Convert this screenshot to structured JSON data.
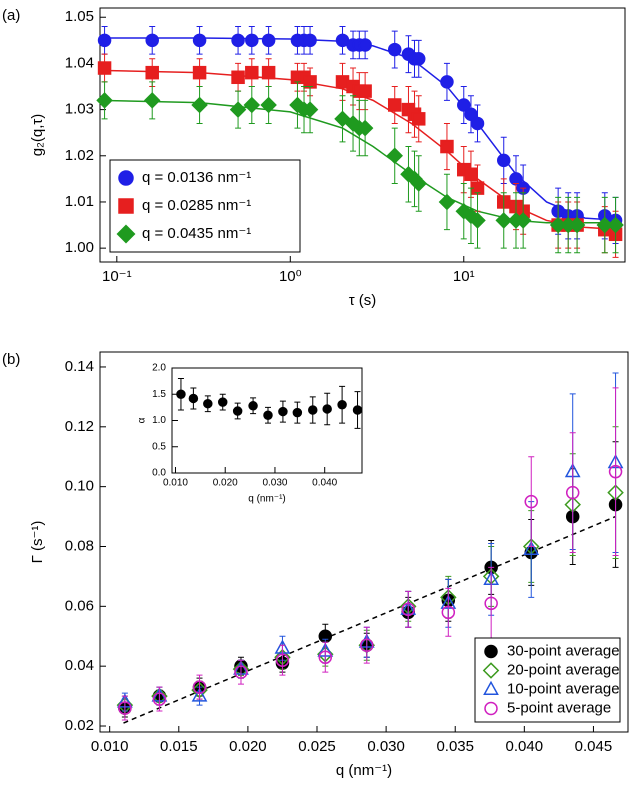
{
  "chart_data": [
    {
      "type": "scatter",
      "panel_label": "(a)",
      "xlabel": "τ (s)",
      "ylabel": "g₂(q,τ)",
      "log_x": true,
      "legend": "lower left",
      "xlim": [
        0.08,
        85
      ],
      "xticks": [
        {
          "value": 0.1,
          "label": "10⁻¹"
        },
        {
          "value": 1,
          "label": "10⁰"
        },
        {
          "value": 10,
          "label": "10¹"
        }
      ],
      "ylim": [
        0.997,
        1.052
      ],
      "yticks": [
        {
          "value": 1,
          "label": "1.00"
        },
        1.01,
        1.02,
        1.03,
        1.04,
        1.05
      ],
      "x": [
        0.085,
        0.16,
        0.3,
        0.5,
        0.6,
        0.75,
        1.1,
        1.2,
        1.3,
        2,
        2.3,
        2.5,
        2.7,
        4,
        4.8,
        5.2,
        5.5,
        8,
        10,
        11,
        12,
        17,
        20,
        22,
        35,
        40,
        45,
        65,
        75
      ],
      "fit_x": [
        0.08,
        0.3,
        1,
        2,
        3,
        5,
        8,
        12,
        20,
        30,
        50,
        80
      ],
      "series": [
        {
          "name": "q = 0.0136 nm⁻¹",
          "color": "#1f1fe6",
          "marker": "circle",
          "filled": true,
          "values": [
            1.045,
            1.045,
            1.045,
            1.045,
            1.045,
            1.045,
            1.045,
            1.045,
            1.045,
            1.045,
            1.044,
            1.044,
            1.044,
            1.043,
            1.042,
            1.041,
            1.041,
            1.036,
            1.031,
            1.029,
            1.027,
            1.019,
            1.015,
            1.013,
            1.008,
            1.007,
            1.007,
            1.007,
            1.006
          ],
          "errors": [
            0.003,
            0.003,
            0.003,
            0.003,
            0.003,
            0.003,
            0.003,
            0.003,
            0.003,
            0.003,
            0.003,
            0.003,
            0.003,
            0.004,
            0.004,
            0.004,
            0.004,
            0.004,
            0.004,
            0.004,
            0.004,
            0.005,
            0.005,
            0.005,
            0.005,
            0.005,
            0.005,
            0.005,
            0.005
          ],
          "fit": [
            1.0455,
            1.0455,
            1.0453,
            1.0448,
            1.0438,
            1.041,
            1.035,
            1.027,
            1.016,
            1.01,
            1.0065,
            1.006
          ]
        },
        {
          "name": "q = 0.0285 nm⁻¹",
          "color": "#e61f1f",
          "marker": "square",
          "filled": true,
          "values": [
            1.039,
            1.038,
            1.038,
            1.037,
            1.038,
            1.038,
            1.037,
            1.037,
            1.036,
            1.036,
            1.035,
            1.034,
            1.034,
            1.031,
            1.03,
            1.029,
            1.028,
            1.022,
            1.017,
            1.016,
            1.013,
            1.01,
            1.009,
            1.008,
            1.005,
            1.005,
            1.005,
            1.004,
            1.003
          ],
          "errors": [
            0.003,
            0.003,
            0.003,
            0.003,
            0.003,
            0.003,
            0.003,
            0.003,
            0.003,
            0.004,
            0.004,
            0.004,
            0.004,
            0.004,
            0.005,
            0.005,
            0.005,
            0.005,
            0.005,
            0.005,
            0.005,
            0.005,
            0.005,
            0.005,
            0.005,
            0.005,
            0.005,
            0.005,
            0.005
          ],
          "fit": [
            1.0385,
            1.038,
            1.0365,
            1.0345,
            1.032,
            1.027,
            1.021,
            1.015,
            1.009,
            1.006,
            1.0045,
            1.004
          ]
        },
        {
          "name": "q = 0.0435 nm⁻¹",
          "color": "#1f9a1f",
          "marker": "diamond",
          "filled": true,
          "values": [
            1.032,
            1.032,
            1.031,
            1.03,
            1.031,
            1.031,
            1.031,
            1.03,
            1.03,
            1.028,
            1.027,
            1.026,
            1.026,
            1.02,
            1.016,
            1.015,
            1.014,
            1.01,
            1.008,
            1.007,
            1.006,
            1.006,
            1.006,
            1.006,
            1.005,
            1.005,
            1.005,
            1.005,
            1.005
          ],
          "errors": [
            0.004,
            0.004,
            0.004,
            0.004,
            0.004,
            0.004,
            0.005,
            0.005,
            0.005,
            0.005,
            0.006,
            0.006,
            0.006,
            0.006,
            0.006,
            0.006,
            0.006,
            0.006,
            0.006,
            0.006,
            0.006,
            0.006,
            0.006,
            0.006,
            0.006,
            0.006,
            0.006,
            0.006,
            0.006
          ],
          "fit": [
            1.032,
            1.0315,
            1.0295,
            1.026,
            1.022,
            1.016,
            1.011,
            1.008,
            1.006,
            1.0055,
            1.0055,
            1.0055
          ]
        }
      ]
    },
    {
      "type": "scatter",
      "panel_label": "(b)",
      "xlabel": "q (nm⁻¹)",
      "ylabel": "Γ (s⁻¹)",
      "log_x": false,
      "legend": "lower right",
      "xlim": [
        0.0093,
        0.0475
      ],
      "xticks": [
        {
          "value": 0.01,
          "label": "0.010"
        },
        0.015,
        {
          "value": 0.02,
          "label": "0.020"
        },
        0.025,
        {
          "value": 0.03,
          "label": "0.030"
        },
        0.035,
        {
          "value": 0.04,
          "label": "0.040"
        },
        0.045
      ],
      "ylim": [
        0.018,
        0.145
      ],
      "yticks": [
        0.02,
        0.04,
        0.06,
        0.08,
        {
          "value": 0.1,
          "label": "0.10"
        },
        0.12,
        0.14
      ],
      "x": [
        0.0111,
        0.0136,
        0.0165,
        0.0195,
        0.0225,
        0.0256,
        0.0286,
        0.0316,
        0.0345,
        0.0376,
        0.0405,
        0.0435,
        0.0466
      ],
      "fit_x": [
        0.011,
        0.0466
      ],
      "fit_dashed": true,
      "series": [
        {
          "name": "30-point average",
          "color": "#000000",
          "marker": "circle",
          "filled": true,
          "values": [
            0.026,
            0.03,
            0.033,
            0.04,
            0.041,
            0.05,
            0.047,
            0.058,
            0.062,
            0.073,
            0.078,
            0.09,
            0.094
          ],
          "errors": [
            0.003,
            0.002,
            0.003,
            0.003,
            0.003,
            0.004,
            0.004,
            0.005,
            0.007,
            0.009,
            0.011,
            0.016,
            0.021
          ],
          "fit": [
            0.021,
            0.09
          ]
        },
        {
          "name": "20-point average",
          "color": "#3c9a1e",
          "marker": "diamond",
          "filled": false,
          "values": [
            0.027,
            0.03,
            0.032,
            0.039,
            0.043,
            0.044,
            0.047,
            0.06,
            0.063,
            0.07,
            0.08,
            0.094,
            0.098
          ],
          "errors": [
            0.003,
            0.003,
            0.003,
            0.003,
            0.004,
            0.004,
            0.005,
            0.005,
            0.007,
            0.01,
            0.012,
            0.017,
            0.022
          ]
        },
        {
          "name": "10-point average",
          "color": "#2255dd",
          "marker": "triangle",
          "filled": false,
          "values": [
            0.028,
            0.03,
            0.03,
            0.039,
            0.046,
            0.045,
            0.048,
            0.059,
            0.061,
            0.069,
            0.079,
            0.105,
            0.108
          ],
          "errors": [
            0.003,
            0.003,
            0.003,
            0.003,
            0.004,
            0.004,
            0.005,
            0.006,
            0.008,
            0.012,
            0.016,
            0.026,
            0.03
          ]
        },
        {
          "name": "5-point average",
          "color": "#d020c0",
          "marker": "circle",
          "filled": false,
          "values": [
            0.026,
            0.029,
            0.033,
            0.038,
            0.042,
            0.043,
            0.047,
            0.059,
            0.058,
            0.061,
            0.095,
            0.098,
            0.105
          ],
          "errors": [
            0.004,
            0.004,
            0.004,
            0.004,
            0.005,
            0.005,
            0.006,
            0.006,
            0.008,
            0.012,
            0.015,
            0.02,
            0.028
          ]
        }
      ]
    },
    {
      "type": "scatter",
      "xlabel": "q (nm⁻¹)",
      "ylabel": "α",
      "log_x": false,
      "xlim": [
        0.0093,
        0.0475
      ],
      "xticks": [
        {
          "value": 0.01,
          "label": "0.010"
        },
        {
          "value": 0.02,
          "label": "0.020"
        },
        {
          "value": 0.03,
          "label": "0.030"
        },
        {
          "value": 0.04,
          "label": "0.040"
        }
      ],
      "ylim": [
        0,
        2
      ],
      "yticks": [
        {
          "value": 0,
          "label": "0.0"
        },
        0.5,
        {
          "value": 1,
          "label": "1.0"
        },
        1.5,
        {
          "value": 2,
          "label": "2.0"
        }
      ],
      "x": [
        0.0111,
        0.0136,
        0.0165,
        0.0195,
        0.0225,
        0.0256,
        0.0286,
        0.0316,
        0.0345,
        0.0376,
        0.0405,
        0.0435,
        0.0466
      ],
      "series": [
        {
          "color": "#000000",
          "marker": "circle",
          "filled": true,
          "values": [
            1.5,
            1.42,
            1.32,
            1.35,
            1.18,
            1.28,
            1.1,
            1.17,
            1.15,
            1.2,
            1.22,
            1.3,
            1.2
          ],
          "errors": [
            0.3,
            0.2,
            0.15,
            0.15,
            0.15,
            0.15,
            0.15,
            0.2,
            0.2,
            0.25,
            0.3,
            0.35,
            0.35
          ]
        }
      ]
    }
  ]
}
